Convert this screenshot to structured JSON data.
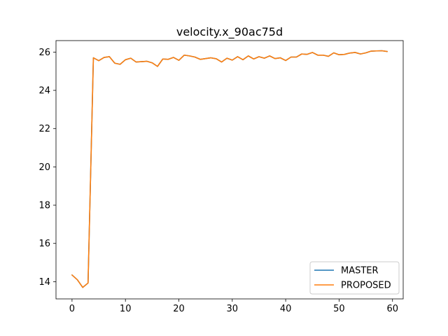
{
  "chart_data": {
    "type": "line",
    "title": "velocity.x_90ac75d",
    "xlabel": "",
    "ylabel": "",
    "xlim": [
      -3,
      62
    ],
    "ylim": [
      13.1,
      26.6
    ],
    "xticks": [
      0,
      10,
      20,
      30,
      40,
      50,
      60
    ],
    "yticks": [
      14,
      16,
      18,
      20,
      22,
      24,
      26
    ],
    "grid": false,
    "legend_position": "lower-right",
    "series": [
      {
        "name": "MASTER",
        "color": "#1f77b4",
        "x": [
          0,
          1,
          2,
          3,
          4,
          5,
          6,
          7,
          8,
          9,
          10,
          11,
          12,
          13,
          14,
          15,
          16,
          17,
          18,
          19,
          20,
          21,
          22,
          23,
          24,
          25,
          26,
          27,
          28,
          29,
          30,
          31,
          32,
          33,
          34,
          35,
          36,
          37,
          38,
          39,
          40,
          41,
          42,
          43,
          44,
          45,
          46,
          47,
          48,
          49,
          50,
          51,
          52,
          53,
          54,
          55,
          56,
          57,
          58,
          59
        ],
        "values": [
          14.35,
          14.1,
          13.7,
          13.93,
          25.7,
          25.55,
          25.72,
          25.76,
          25.42,
          25.36,
          25.6,
          25.68,
          25.48,
          25.5,
          25.52,
          25.44,
          25.25,
          25.64,
          25.62,
          25.72,
          25.57,
          25.84,
          25.8,
          25.74,
          25.62,
          25.66,
          25.7,
          25.65,
          25.48,
          25.68,
          25.58,
          25.76,
          25.6,
          25.8,
          25.64,
          25.76,
          25.68,
          25.8,
          25.66,
          25.7,
          25.56,
          25.74,
          25.74,
          25.9,
          25.88,
          25.98,
          25.84,
          25.84,
          25.78,
          25.96,
          25.86,
          25.88,
          25.95,
          25.98,
          25.9,
          25.96,
          26.05,
          26.06,
          26.07,
          26.03
        ]
      },
      {
        "name": "PROPOSED",
        "color": "#ff7f0e",
        "x": [
          0,
          1,
          2,
          3,
          4,
          5,
          6,
          7,
          8,
          9,
          10,
          11,
          12,
          13,
          14,
          15,
          16,
          17,
          18,
          19,
          20,
          21,
          22,
          23,
          24,
          25,
          26,
          27,
          28,
          29,
          30,
          31,
          32,
          33,
          34,
          35,
          36,
          37,
          38,
          39,
          40,
          41,
          42,
          43,
          44,
          45,
          46,
          47,
          48,
          49,
          50,
          51,
          52,
          53,
          54,
          55,
          56,
          57,
          58,
          59
        ],
        "values": [
          14.35,
          14.1,
          13.7,
          13.93,
          25.7,
          25.55,
          25.72,
          25.76,
          25.42,
          25.36,
          25.6,
          25.68,
          25.48,
          25.5,
          25.52,
          25.44,
          25.25,
          25.64,
          25.62,
          25.72,
          25.57,
          25.84,
          25.8,
          25.74,
          25.62,
          25.66,
          25.7,
          25.65,
          25.48,
          25.68,
          25.58,
          25.76,
          25.6,
          25.8,
          25.64,
          25.76,
          25.68,
          25.8,
          25.66,
          25.7,
          25.56,
          25.74,
          25.74,
          25.9,
          25.88,
          25.98,
          25.84,
          25.84,
          25.78,
          25.96,
          25.86,
          25.88,
          25.95,
          25.98,
          25.9,
          25.96,
          26.05,
          26.06,
          26.07,
          26.03
        ]
      }
    ]
  }
}
